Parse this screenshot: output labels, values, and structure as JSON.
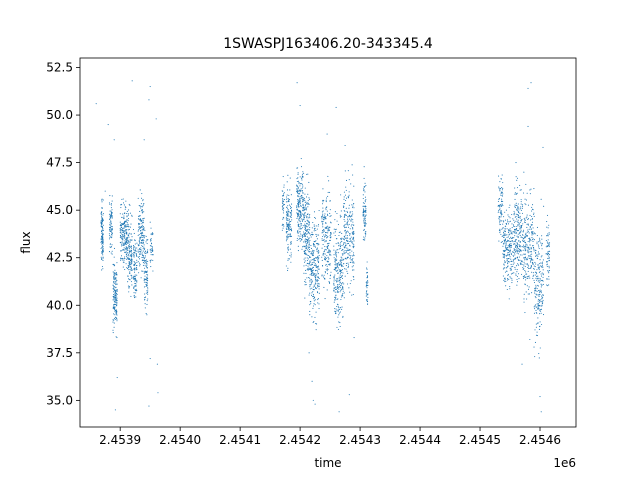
{
  "chart_data": {
    "type": "scatter",
    "title": "1SWASPJ163406.20-343345.4",
    "xlabel": "time",
    "ylabel": "flux",
    "x_offset_label": "1e6",
    "xlim": [
      2453833,
      2454660
    ],
    "ylim": [
      33.6,
      53.0
    ],
    "x_ticks": [
      2453900,
      2454000,
      2454100,
      2454200,
      2454300,
      2454400,
      2454500,
      2454600
    ],
    "x_tick_labels": [
      "2.4539",
      "2.4540",
      "2.4541",
      "2.4542",
      "2.4543",
      "2.4544",
      "2.4545",
      "2.4546"
    ],
    "y_ticks": [
      35.0,
      37.5,
      40.0,
      42.5,
      45.0,
      47.5,
      50.0,
      52.5
    ],
    "y_tick_labels": [
      "35.0",
      "37.5",
      "40.0",
      "42.5",
      "45.0",
      "47.5",
      "50.0",
      "52.5"
    ],
    "grid": false,
    "marker_color": "#1f77b4",
    "series": [
      {
        "values_description_free": true,
        "clusters": [
          {
            "x_range": [
              2453868,
              2453872
            ],
            "y_center": 43.7,
            "y_spread": 0.8,
            "n": 120
          },
          {
            "x_range": [
              2453882,
              2453887
            ],
            "y_center": 44.3,
            "y_spread": 0.7,
            "n": 80
          },
          {
            "x_range": [
              2453888,
              2453895
            ],
            "y_center": 40.6,
            "y_spread": 0.9,
            "n": 160
          },
          {
            "x_range": [
              2453900,
              2453912
            ],
            "y_center": 43.6,
            "y_spread": 0.8,
            "n": 200
          },
          {
            "x_range": [
              2453912,
              2453920
            ],
            "y_center": 42.8,
            "y_spread": 1.0,
            "n": 140
          },
          {
            "x_range": [
              2453922,
              2453928
            ],
            "y_center": 42.0,
            "y_spread": 0.8,
            "n": 90
          },
          {
            "x_range": [
              2453930,
              2453940
            ],
            "y_center": 43.8,
            "y_spread": 1.0,
            "n": 160
          },
          {
            "x_range": [
              2453940,
              2453946
            ],
            "y_center": 41.8,
            "y_spread": 1.1,
            "n": 100
          },
          {
            "x_range": [
              2453950,
              2453955
            ],
            "y_center": 43.0,
            "y_spread": 0.6,
            "n": 40
          },
          {
            "x_range": [
              2454170,
              2454174
            ],
            "y_center": 45.3,
            "y_spread": 0.7,
            "n": 40
          },
          {
            "x_range": [
              2454177,
              2454186
            ],
            "y_center": 44.2,
            "y_spread": 0.9,
            "n": 150
          },
          {
            "x_range": [
              2454194,
              2454206
            ],
            "y_center": 45.3,
            "y_spread": 1.0,
            "n": 200
          },
          {
            "x_range": [
              2454206,
              2454216
            ],
            "y_center": 43.5,
            "y_spread": 1.2,
            "n": 200
          },
          {
            "x_range": [
              2454216,
              2454232
            ],
            "y_center": 42.0,
            "y_spread": 1.3,
            "n": 240
          },
          {
            "x_range": [
              2454236,
              2454252
            ],
            "y_center": 43.5,
            "y_spread": 1.2,
            "n": 200
          },
          {
            "x_range": [
              2454256,
              2454272
            ],
            "y_center": 41.8,
            "y_spread": 1.4,
            "n": 240
          },
          {
            "x_range": [
              2454272,
              2454290
            ],
            "y_center": 43.6,
            "y_spread": 1.4,
            "n": 240
          },
          {
            "x_range": [
              2454305,
              2454310
            ],
            "y_center": 44.9,
            "y_spread": 0.8,
            "n": 80
          },
          {
            "x_range": [
              2454310,
              2454313
            ],
            "y_center": 41.0,
            "y_spread": 0.6,
            "n": 40
          },
          {
            "x_range": [
              2454530,
              2454538
            ],
            "y_center": 45.2,
            "y_spread": 0.8,
            "n": 80
          },
          {
            "x_range": [
              2454538,
              2454556
            ],
            "y_center": 43.0,
            "y_spread": 1.0,
            "n": 220
          },
          {
            "x_range": [
              2454556,
              2454572
            ],
            "y_center": 43.8,
            "y_spread": 1.2,
            "n": 220
          },
          {
            "x_range": [
              2454572,
              2454590
            ],
            "y_center": 43.2,
            "y_spread": 1.3,
            "n": 220
          },
          {
            "x_range": [
              2454590,
              2454606
            ],
            "y_center": 41.0,
            "y_spread": 1.5,
            "n": 200
          },
          {
            "x_range": [
              2454610,
              2454616
            ],
            "y_center": 42.8,
            "y_spread": 0.9,
            "n": 60
          }
        ],
        "outliers": [
          [
            2453860,
            50.6
          ],
          [
            2453875,
            46.0
          ],
          [
            2453880,
            49.5
          ],
          [
            2453890,
            48.7
          ],
          [
            2453892,
            34.5
          ],
          [
            2453895,
            36.2
          ],
          [
            2453920,
            51.8
          ],
          [
            2453940,
            48.7
          ],
          [
            2453948,
            50.8
          ],
          [
            2453950,
            51.5
          ],
          [
            2453948,
            34.7
          ],
          [
            2453950,
            37.2
          ],
          [
            2453960,
            49.8
          ],
          [
            2453962,
            36.9
          ],
          [
            2453963,
            35.4
          ],
          [
            2454195,
            51.7
          ],
          [
            2454200,
            50.5
          ],
          [
            2454215,
            37.5
          ],
          [
            2454220,
            36.0
          ],
          [
            2454222,
            35.0
          ],
          [
            2454225,
            34.8
          ],
          [
            2454260,
            50.4
          ],
          [
            2454265,
            34.4
          ],
          [
            2454275,
            48.4
          ],
          [
            2454282,
            35.3
          ],
          [
            2454245,
            49.0
          ],
          [
            2454290,
            38.3
          ],
          [
            2454560,
            47.5
          ],
          [
            2454580,
            49.4
          ],
          [
            2454585,
            51.7
          ],
          [
            2454580,
            51.4
          ],
          [
            2454583,
            38.2
          ],
          [
            2454590,
            37.8
          ],
          [
            2454600,
            35.2
          ],
          [
            2454602,
            34.4
          ],
          [
            2454605,
            48.3
          ],
          [
            2454606,
            45.2
          ],
          [
            2454570,
            36.9
          ],
          [
            2454550,
            44.6
          ]
        ]
      }
    ]
  }
}
